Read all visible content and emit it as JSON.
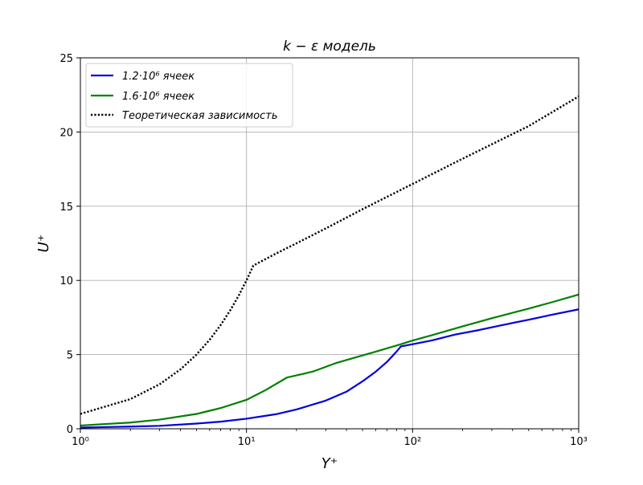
{
  "chart_data": {
    "type": "line",
    "title": "k − ε модель",
    "xlabel": "Y⁺",
    "ylabel": "U⁺",
    "xscale": "log",
    "xlim": [
      1,
      1000
    ],
    "ylim": [
      0,
      25
    ],
    "x_ticks": [
      {
        "value": 1,
        "label": "10⁰"
      },
      {
        "value": 10,
        "label": "10¹"
      },
      {
        "value": 100,
        "label": "10²"
      },
      {
        "value": 1000,
        "label": "10³"
      }
    ],
    "y_ticks": [
      {
        "value": 0,
        "label": "0"
      },
      {
        "value": 5,
        "label": "5"
      },
      {
        "value": 10,
        "label": "10"
      },
      {
        "value": 15,
        "label": "15"
      },
      {
        "value": 20,
        "label": "20"
      },
      {
        "value": 25,
        "label": "25"
      }
    ],
    "grid": true,
    "legend_position": "top-left",
    "series": [
      {
        "name": "1.2·10⁶ ячеек",
        "color": "#0000dd",
        "style": "solid",
        "points": [
          [
            1,
            0.08
          ],
          [
            2,
            0.15
          ],
          [
            3,
            0.2
          ],
          [
            5,
            0.35
          ],
          [
            7,
            0.48
          ],
          [
            10,
            0.68
          ],
          [
            15,
            0.98
          ],
          [
            20,
            1.3
          ],
          [
            30,
            1.9
          ],
          [
            40,
            2.5
          ],
          [
            50,
            3.2
          ],
          [
            60,
            3.85
          ],
          [
            70,
            4.5
          ],
          [
            80,
            5.2
          ],
          [
            85,
            5.55
          ],
          [
            100,
            5.7
          ],
          [
            130,
            5.95
          ],
          [
            180,
            6.35
          ],
          [
            250,
            6.65
          ],
          [
            350,
            7.0
          ],
          [
            500,
            7.35
          ],
          [
            700,
            7.7
          ],
          [
            1000,
            8.05
          ]
        ]
      },
      {
        "name": "1.6·10⁶ ячеек",
        "color": "#008000",
        "style": "solid",
        "points": [
          [
            1,
            0.22
          ],
          [
            2,
            0.42
          ],
          [
            3,
            0.62
          ],
          [
            5,
            1.0
          ],
          [
            7,
            1.4
          ],
          [
            10,
            1.95
          ],
          [
            13,
            2.6
          ],
          [
            17.5,
            3.45
          ],
          [
            25,
            3.85
          ],
          [
            35,
            4.45
          ],
          [
            45,
            4.8
          ],
          [
            60,
            5.2
          ],
          [
            85,
            5.7
          ],
          [
            100,
            5.95
          ],
          [
            130,
            6.3
          ],
          [
            200,
            6.9
          ],
          [
            300,
            7.45
          ],
          [
            500,
            8.1
          ],
          [
            700,
            8.55
          ],
          [
            1000,
            9.05
          ]
        ]
      },
      {
        "name": "Теоретическая зависимость",
        "color": "#000000",
        "style": "dotted",
        "points": [
          [
            1,
            1.0
          ],
          [
            2,
            2.0
          ],
          [
            3,
            3.0
          ],
          [
            4,
            4.0
          ],
          [
            5,
            5.0
          ],
          [
            6,
            6.0
          ],
          [
            7,
            7.0
          ],
          [
            8,
            8.0
          ],
          [
            9,
            9.0
          ],
          [
            10,
            10.0
          ],
          [
            11,
            11.0
          ],
          [
            15,
            11.8
          ],
          [
            20,
            12.5
          ],
          [
            30,
            13.5
          ],
          [
            50,
            14.8
          ],
          [
            100,
            16.5
          ],
          [
            200,
            18.2
          ],
          [
            500,
            20.4
          ],
          [
            1000,
            22.4
          ]
        ]
      }
    ]
  }
}
